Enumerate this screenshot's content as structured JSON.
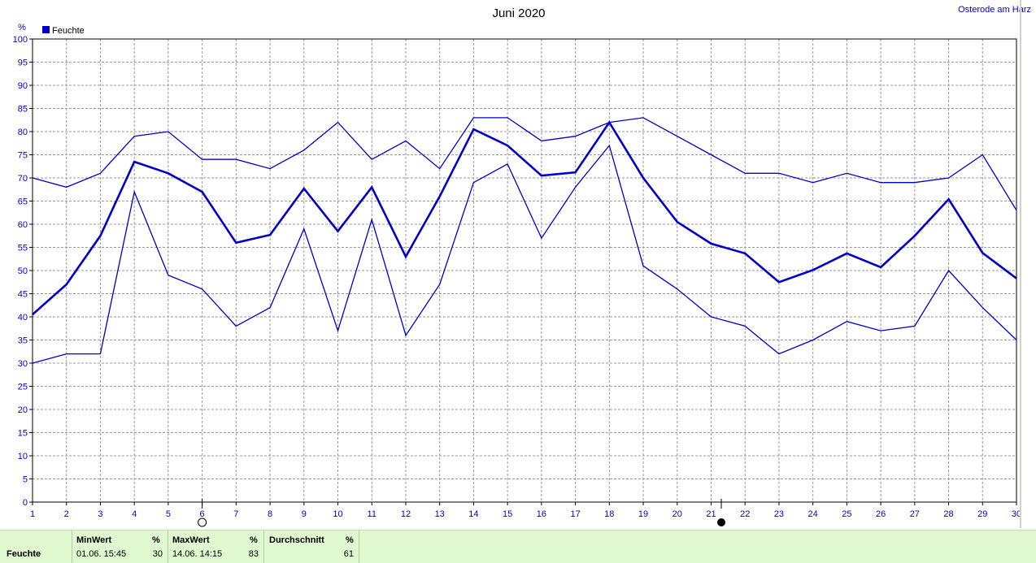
{
  "header": {
    "title": "Juni 2020",
    "station": "Osterode am Harz",
    "unit": "%"
  },
  "legend": {
    "label": "Feuchte",
    "color": "#0000cc"
  },
  "colors": {
    "line": "#0000cc",
    "grid": "#9a9a9a",
    "axis": "#000000",
    "tick_text": "#0000cc"
  },
  "chart_data": {
    "type": "line",
    "title": "Juni 2020",
    "ylabel": "%",
    "ylim": [
      0,
      100
    ],
    "yticks": [
      0,
      5,
      10,
      15,
      20,
      25,
      30,
      35,
      40,
      45,
      50,
      55,
      60,
      65,
      70,
      75,
      80,
      85,
      90,
      95,
      100
    ],
    "x": [
      1,
      2,
      3,
      4,
      5,
      6,
      7,
      8,
      9,
      10,
      11,
      12,
      13,
      14,
      15,
      16,
      17,
      18,
      19,
      20,
      21,
      22,
      23,
      24,
      25,
      26,
      27,
      28,
      29,
      30
    ],
    "xlim": [
      1,
      30
    ],
    "grid": true,
    "legend_position": "top-left",
    "series": [
      {
        "name": "Feuchte",
        "role": "max",
        "width": 1.3,
        "values": [
          70,
          68,
          71,
          79,
          80,
          74,
          74,
          72,
          76,
          82,
          74,
          78,
          72,
          83,
          83,
          78,
          79,
          82,
          83,
          79,
          75,
          71,
          71,
          69,
          71,
          69,
          69,
          70,
          75,
          63
        ]
      },
      {
        "name": "Feuchte",
        "role": "mean",
        "width": 2.6,
        "values": [
          40.5,
          47,
          57.5,
          73.5,
          71,
          67,
          56,
          57.7,
          67.7,
          58.5,
          68,
          53,
          66,
          80.5,
          77,
          70.5,
          71.2,
          82,
          70,
          60.5,
          55.8,
          53.7,
          47.5,
          50.1,
          53.7,
          50.7,
          57.5,
          65.4,
          53.8,
          48.3
        ]
      },
      {
        "name": "Feuchte",
        "role": "min",
        "width": 1.3,
        "values": [
          30,
          32,
          32,
          67,
          49,
          46,
          38,
          42,
          59,
          37,
          61,
          36,
          47,
          69,
          73,
          57,
          68,
          77,
          51,
          46,
          40,
          38,
          32,
          35,
          39,
          37,
          38,
          50,
          42,
          35
        ]
      }
    ],
    "markers": [
      {
        "day": 6,
        "symbol": "full-moon",
        "label": "○"
      },
      {
        "day": 21.3,
        "symbol": "new-moon",
        "label": "●"
      }
    ]
  },
  "summary": {
    "row_label": "Feuchte",
    "min": {
      "label": "MinWert",
      "unit": "%",
      "time": "01.06.  15:45",
      "value": "30"
    },
    "max": {
      "label": "MaxWert",
      "unit": "%",
      "time": "14.06.  14:15",
      "value": "83"
    },
    "avg": {
      "label": "Durchschnitt",
      "unit": "%",
      "value": "61"
    }
  }
}
